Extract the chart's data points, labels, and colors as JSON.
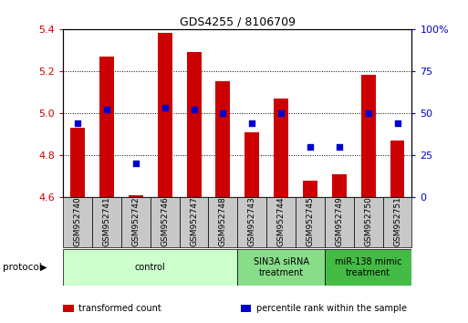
{
  "title": "GDS4255 / 8106709",
  "samples": [
    "GSM952740",
    "GSM952741",
    "GSM952742",
    "GSM952746",
    "GSM952747",
    "GSM952748",
    "GSM952743",
    "GSM952744",
    "GSM952745",
    "GSM952749",
    "GSM952750",
    "GSM952751"
  ],
  "transformed_count": [
    4.93,
    5.27,
    4.61,
    5.38,
    5.29,
    5.15,
    4.91,
    5.07,
    4.68,
    4.71,
    5.18,
    4.87
  ],
  "percentile_rank": [
    44,
    52,
    20,
    53,
    52,
    50,
    44,
    50,
    30,
    30,
    50,
    44
  ],
  "ylim_left": [
    4.6,
    5.4
  ],
  "ylim_right": [
    0,
    100
  ],
  "yticks_left": [
    4.6,
    4.8,
    5.0,
    5.2,
    5.4
  ],
  "yticks_right": [
    0,
    25,
    50,
    75,
    100
  ],
  "ytick_labels_right": [
    "0",
    "25",
    "50",
    "75",
    "100%"
  ],
  "groups": [
    {
      "label": "control",
      "start": 0,
      "end": 6,
      "color": "#ccffcc"
    },
    {
      "label": "SIN3A siRNA\ntreatment",
      "start": 6,
      "end": 9,
      "color": "#88dd88"
    },
    {
      "label": "miR-138 mimic\ntreatment",
      "start": 9,
      "end": 12,
      "color": "#44bb44"
    }
  ],
  "bar_color": "#cc0000",
  "dot_color": "#0000cc",
  "bar_width": 0.5,
  "bar_base": 4.6,
  "tick_color_left": "#cc0000",
  "tick_color_right": "#0000cc",
  "protocol_label": "protocol",
  "label_box_color": "#c8c8c8",
  "legend_items": [
    {
      "label": "transformed count",
      "color": "#cc0000"
    },
    {
      "label": "percentile rank within the sample",
      "color": "#0000cc"
    }
  ]
}
